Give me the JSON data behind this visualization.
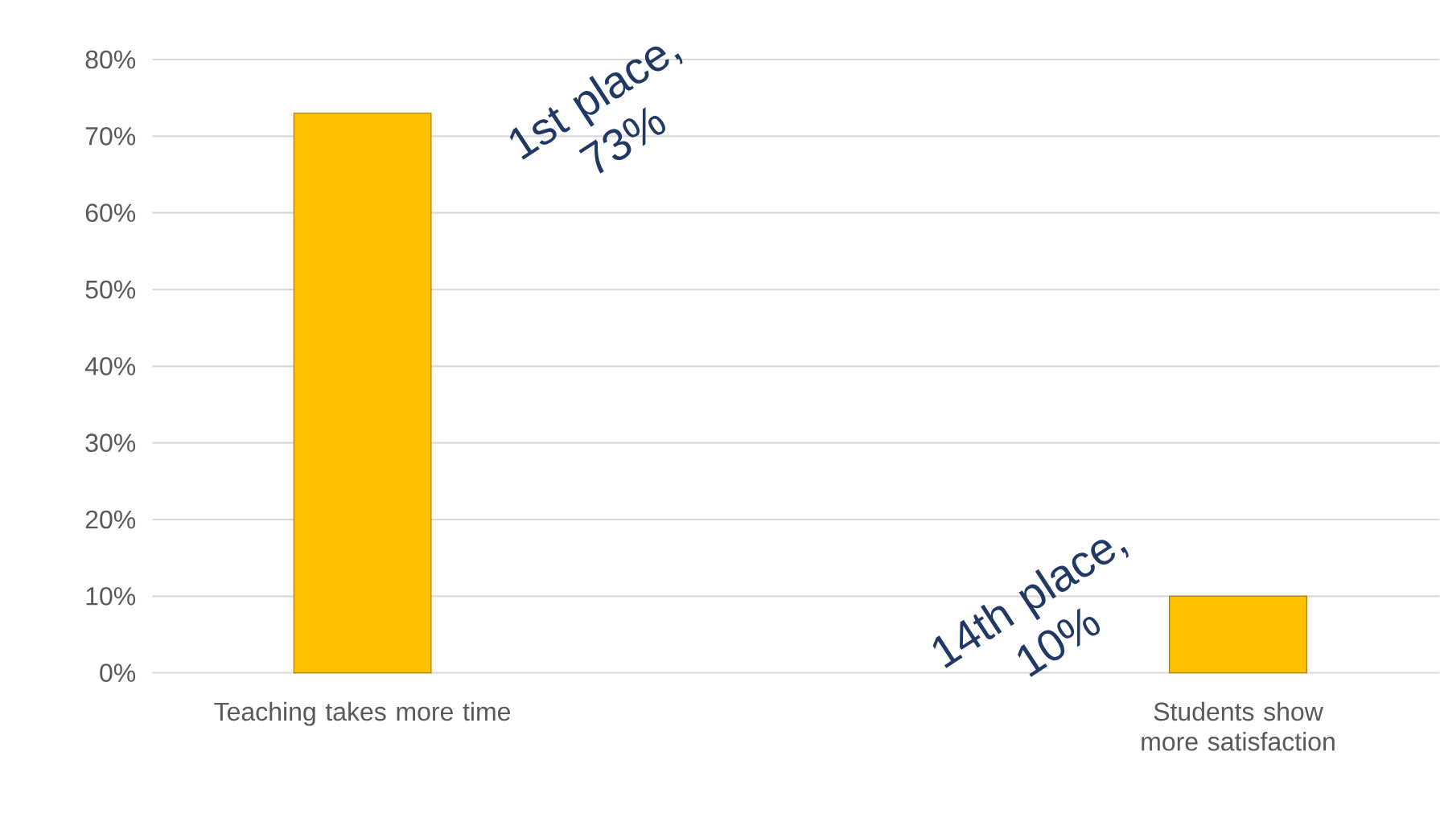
{
  "chart_data": {
    "type": "bar",
    "categories": [
      "Teaching takes more time",
      "Students show more satisfaction"
    ],
    "values": [
      73,
      10
    ],
    "color": "#ffc000",
    "ylim": [
      0,
      80
    ],
    "yticks": [
      {
        "value": 0,
        "label": "0%"
      },
      {
        "value": 10,
        "label": "10%"
      },
      {
        "value": 20,
        "label": "20%"
      },
      {
        "value": 30,
        "label": "30%"
      },
      {
        "value": 40,
        "label": "40%"
      },
      {
        "value": 50,
        "label": "50%"
      },
      {
        "value": 60,
        "label": "60%"
      },
      {
        "value": 70,
        "label": "70%"
      },
      {
        "value": 80,
        "label": "80%"
      }
    ],
    "grid": "y",
    "annotations": [
      "1st place, 73%",
      "14th place, 10%"
    ]
  }
}
